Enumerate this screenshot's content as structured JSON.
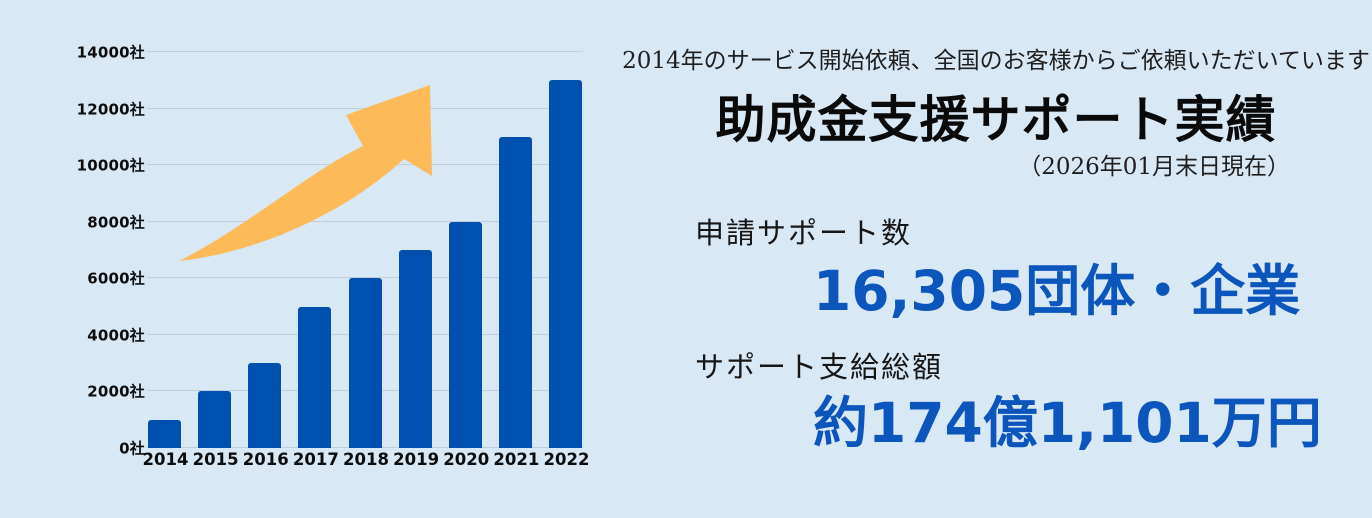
{
  "page": {
    "background_color": "#d9e8f5"
  },
  "chart_data": {
    "type": "bar",
    "categories": [
      "2014",
      "2015",
      "2016",
      "2017",
      "2018",
      "2019",
      "2020",
      "2021",
      "2022"
    ],
    "values": [
      1000,
      2000,
      3000,
      5000,
      6000,
      7000,
      8000,
      11000,
      13000
    ],
    "title": "",
    "xlabel": "",
    "ylabel": "",
    "ylim": [
      0,
      14000
    ],
    "yticks": [
      0,
      2000,
      4000,
      6000,
      8000,
      10000,
      12000,
      14000
    ],
    "ytick_suffix": "社",
    "grid": true,
    "legend": "none",
    "bar_color": "#0050b0",
    "grid_color": "#c3cedb",
    "annotations": [
      {
        "name": "growth-arrow",
        "description": "orange curved upward trend arrow over bars",
        "color": "#fcba59"
      }
    ]
  },
  "panel": {
    "intro": "2014年のサービス開始依頼、全国のお客様からご依頼いただいています",
    "title": "助成金支援サポート実績",
    "as_of": "（2026年01月末日現在）",
    "accent_color": "#0b55bc",
    "stats": [
      {
        "label": "申請サポート数",
        "value": "16,305団体・企業"
      },
      {
        "label": "サポート支給総額",
        "value": "約174億1,101万円"
      }
    ]
  }
}
